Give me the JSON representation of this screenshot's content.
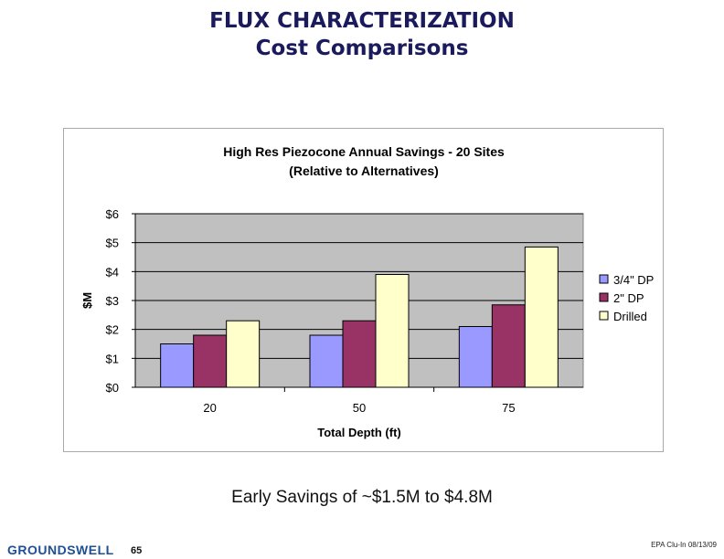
{
  "slide": {
    "title_line1": "FLUX CHARACTERIZATION",
    "title_line2": "Cost Comparisons",
    "caption": "Early Savings of ~$1.5M to $4.8M",
    "page_number": "65",
    "footer_text": "EPA Clu-In 08/13/09",
    "logo_text": "GROUNDSWELL"
  },
  "chart_data": {
    "type": "bar",
    "title": "High Res Piezocone Annual Savings - 20 Sites",
    "subtitle": "(Relative to Alternatives)",
    "xlabel": "Total Depth (ft)",
    "ylabel": "$M",
    "categories": [
      "20",
      "50",
      "75"
    ],
    "series": [
      {
        "name": "3/4\" DP",
        "values": [
          1.5,
          1.8,
          2.1
        ],
        "color": "#9999ff"
      },
      {
        "name": "2\" DP",
        "values": [
          1.8,
          2.3,
          2.85
        ],
        "color": "#993366"
      },
      {
        "name": "Drilled",
        "values": [
          2.3,
          3.9,
          4.85
        ],
        "color": "#ffffcc"
      }
    ],
    "ylim": [
      0,
      6
    ],
    "yticks": [
      0,
      1,
      2,
      3,
      4,
      5,
      6
    ],
    "ytick_labels": [
      "$0",
      "$1",
      "$2",
      "$3",
      "$4",
      "$5",
      "$6"
    ],
    "grid": true,
    "plot_background": "#c0c0c0",
    "legend_position": "right"
  }
}
